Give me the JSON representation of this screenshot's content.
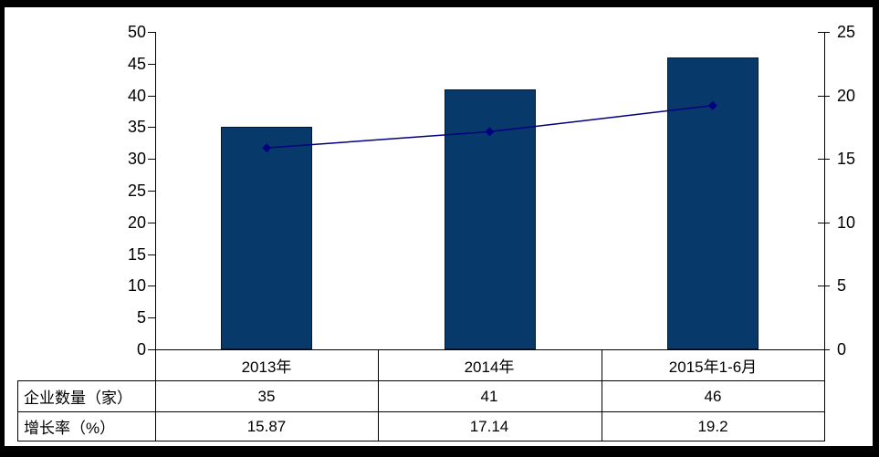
{
  "chart_data": {
    "type": "combo",
    "title": "",
    "categories": [
      "2013年",
      "2014年",
      "2015年1-6月"
    ],
    "series": [
      {
        "name": "企业数量（家）",
        "chart_type": "bar",
        "axis": "left",
        "values": [
          35,
          41,
          46
        ],
        "display_values": [
          "35",
          "41",
          "46"
        ],
        "color": "#08396B"
      },
      {
        "name": "增长率（%）",
        "chart_type": "line",
        "axis": "right",
        "values": [
          15.87,
          17.14,
          19.2
        ],
        "display_values": [
          "15.87",
          "17.14",
          "19.2"
        ],
        "color": "#000080",
        "marker": "diamond"
      }
    ],
    "left_axis": {
      "min": 0,
      "max": 50,
      "step": 5,
      "tick_labels": [
        "0",
        "5",
        "10",
        "15",
        "20",
        "25",
        "30",
        "35",
        "40",
        "45",
        "50"
      ]
    },
    "right_axis": {
      "min": 0,
      "max": 25,
      "step": 5,
      "tick_labels": [
        "0",
        "5",
        "10",
        "15",
        "20",
        "25"
      ]
    },
    "gridlines": false,
    "legend_position": "none",
    "data_table_below_chart": true
  },
  "data_table": {
    "column_headers": [
      "2013年",
      "2014年",
      "2015年1-6月"
    ],
    "row_headers": [
      "企业数量（家）",
      "增长率（%）"
    ],
    "rows": [
      [
        "35",
        "41",
        "46"
      ],
      [
        "15.87",
        "17.14",
        "19.2"
      ]
    ]
  },
  "colors": {
    "bar_fill": "#08396B",
    "bar_border": "#021830",
    "line": "#000080",
    "axis": "#000000",
    "text": "#000000",
    "background": "#FFFFFF",
    "frame": "#000000"
  }
}
